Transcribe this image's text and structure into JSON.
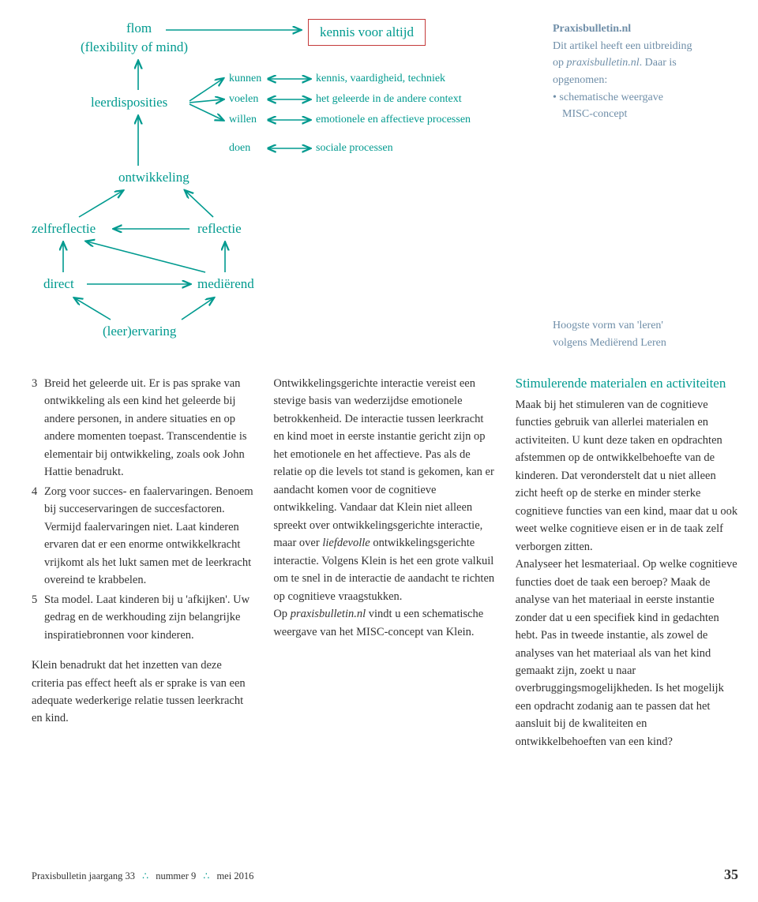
{
  "diagram": {
    "color_node": "#009a8f",
    "color_arrow": "#009a8f",
    "color_box": "#c43a3a",
    "nodes": {
      "flom": "flom",
      "flom_sub": "(flexibility of mind)",
      "leerdisposities": "leerdisposities",
      "kunnen": "kunnen",
      "voelen": "voelen",
      "willen": "willen",
      "doen": "doen",
      "kennis_voor_altijd": "kennis voor altijd",
      "kennis_vaardigheid": "kennis, vaardigheid, techniek",
      "het_geleerde": "het geleerde in de andere context",
      "emotionele": "emotionele en affectieve processen",
      "sociale": "sociale processen",
      "ontwikkeling": "ontwikkeling",
      "zelfreflectie": "zelfreflectie",
      "reflectie": "reflectie",
      "direct": "direct",
      "medierend": "mediërend",
      "leerervaring": "(leer)ervaring"
    }
  },
  "sidebox1": {
    "title": "Praxisbulletin.nl",
    "l1a": "Dit artikel heeft een uitbreiding",
    "l1b_pre": "op ",
    "l1b_it": "praxisbulletin.nl",
    "l1b_post": ". Daar is",
    "l2": "opgenomen:",
    "bullet": "• schematische weergave",
    "bullet2": "  MISC-concept"
  },
  "caption": {
    "l1": "Hoogste vorm van 'leren'",
    "l2": "volgens Mediërend Leren"
  },
  "col1": {
    "items": [
      {
        "num": "3",
        "text": "Breid het geleerde uit. Er is pas sprake van ontwikkeling als een kind het geleerde bij andere personen, in andere situaties en op andere momenten toepast. Transcendentie is elementair bij ontwikkeling, zoals ook John Hattie benadrukt."
      },
      {
        "num": "4",
        "text": "Zorg voor succes- en faalervaringen. Benoem bij succeservaringen de succesfactoren. Vermijd faalervaringen niet. Laat kinderen ervaren dat er een enorme ontwikkelkracht vrijkomt als het lukt samen met de leerkracht overeind te krabbelen."
      },
      {
        "num": "5",
        "text": "Sta model. Laat kinderen bij u 'afkijken'. Uw gedrag en de werkhouding zijn belangrijke inspiratiebronnen voor kinderen."
      }
    ],
    "after": "Klein benadrukt dat het inzetten van deze criteria pas effect heeft als er sprake is van een adequate wederkerige relatie tussen leerkracht en kind."
  },
  "col2": {
    "p1a": "Ontwikkelingsgerichte interactie vereist een stevige basis van wederzijdse emotionele betrokkenheid. De interactie tussen leerkracht en kind moet in eerste instantie gericht zijn op het emotionele en het affectieve. Pas als de relatie op die levels tot stand is gekomen, kan er aandacht komen voor de cognitieve ontwikkeling. Vandaar dat Klein niet alleen spreekt over ontwikkelingsgerichte interactie, maar over ",
    "p1_it": "liefdevolle",
    "p1b": " ontwikkelingsgerichte interactie. Volgens Klein is het een grote valkuil om te snel in de interactie de aandacht te richten op cognitieve vraagstukken.",
    "p2_pre": "Op ",
    "p2_it": "praxisbulletin.nl",
    "p2_post": " vindt u een schematische weergave van het MISC-concept van Klein."
  },
  "col3": {
    "head": "Stimulerende materialen en activiteiten",
    "p1": "Maak bij het stimuleren van de cognitieve functies gebruik van allerlei materialen en activiteiten. U kunt deze taken en opdrachten afstemmen op de ontwikkelbehoefte van de kinderen. Dat veronderstelt dat u niet alleen zicht heeft op de sterke en minder sterke cognitieve functies van een kind, maar dat u ook weet welke cognitieve eisen er in de taak zelf verborgen zitten.",
    "p2": "Analyseer het lesmateriaal. Op welke cognitieve functies doet de taak een beroep? Maak de analyse van het materiaal in eerste instantie zonder dat u een specifiek kind in gedachten hebt. Pas in tweede instantie, als zowel de analyses van het materiaal als van het kind gemaakt zijn, zoekt u naar overbruggingsmogelijkheden. Is het mogelijk een opdracht zodanig aan te passen dat het aansluit bij de kwaliteiten en ontwikkelbehoeften van een kind?"
  },
  "footer": {
    "journal": "Praxisbulletin jaargang 33",
    "issue": "nummer 9",
    "date": "mei 2016",
    "page": "35"
  }
}
